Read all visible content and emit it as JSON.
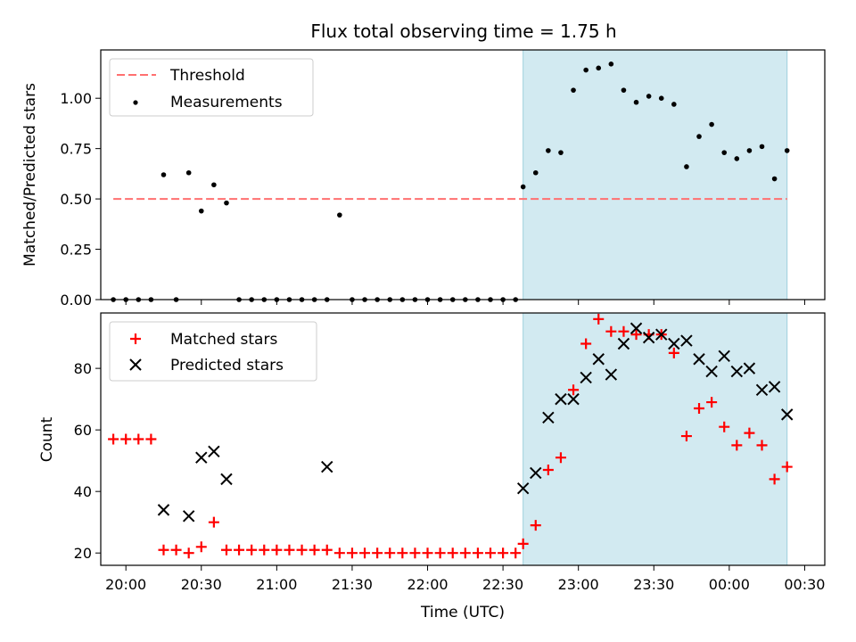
{
  "figure": {
    "title": "Flux total observing time = 1.75 h",
    "highlight_color": "#add8e6",
    "x_ticks": [
      "20:00",
      "20:30",
      "21:00",
      "21:30",
      "22:00",
      "22:30",
      "23:00",
      "23:30",
      "00:00",
      "00:30"
    ],
    "x_tick_minutes": [
      0,
      30,
      60,
      90,
      120,
      150,
      180,
      210,
      240,
      270
    ],
    "xlabel": "Time (UTC)",
    "xlim": [
      -10,
      278
    ]
  },
  "chart_data": [
    {
      "type": "scatter",
      "title": "Flux total observing time = 1.75 h",
      "ylabel": "Matched/Predicted stars",
      "xlabel": "",
      "ylim": [
        0,
        1.24
      ],
      "y_ticks": [
        0.0,
        0.25,
        0.5,
        0.75,
        1.0
      ],
      "y_tick_labels": [
        "0.00",
        "0.25",
        "0.50",
        "0.75",
        "1.00"
      ],
      "legend": {
        "position": "top-left",
        "entries": [
          "Threshold",
          "Measurements"
        ]
      },
      "highlight": {
        "x_from": 158,
        "x_to": 263,
        "color": "#add8e6"
      },
      "threshold": {
        "name": "Threshold",
        "y": 0.5,
        "x_from": -5,
        "x_to": 263,
        "color": "#ff7070"
      },
      "series": [
        {
          "name": "Measurements",
          "color": "#000000",
          "marker": "dot",
          "x": [
            -5,
            0,
            5,
            10,
            15,
            20,
            25,
            30,
            35,
            40,
            45,
            50,
            55,
            60,
            65,
            70,
            75,
            80,
            85,
            90,
            95,
            100,
            105,
            110,
            115,
            120,
            125,
            130,
            135,
            140,
            145,
            150,
            155,
            158,
            163,
            168,
            173,
            178,
            183,
            188,
            193,
            198,
            203,
            208,
            213,
            218,
            223,
            228,
            233,
            238,
            243,
            248,
            253,
            258,
            263
          ],
          "y": [
            0,
            0,
            0,
            0,
            0.62,
            0,
            0.63,
            0.44,
            0.57,
            0.48,
            0,
            0,
            0,
            0,
            0,
            0,
            0,
            0,
            0.42,
            0,
            0,
            0,
            0,
            0,
            0,
            0,
            0,
            0,
            0,
            0,
            0,
            0,
            0,
            0.56,
            0.63,
            0.74,
            0.73,
            1.04,
            1.14,
            1.15,
            1.17,
            1.04,
            0.98,
            1.01,
            1.0,
            0.97,
            0.66,
            0.81,
            0.87,
            0.73,
            0.7,
            0.74,
            0.76,
            0.6,
            0.74
          ]
        }
      ]
    },
    {
      "type": "scatter",
      "ylabel": "Count",
      "xlabel": "Time (UTC)",
      "ylim": [
        16,
        98
      ],
      "y_ticks": [
        20,
        40,
        60,
        80
      ],
      "y_tick_labels": [
        "20",
        "40",
        "60",
        "80"
      ],
      "legend": {
        "position": "top-left",
        "entries": [
          "Matched stars",
          "Predicted stars"
        ]
      },
      "highlight": {
        "x_from": 158,
        "x_to": 263,
        "color": "#add8e6"
      },
      "series": [
        {
          "name": "Matched stars",
          "color": "#ff0000",
          "marker": "plus",
          "x": [
            -5,
            0,
            5,
            10,
            15,
            20,
            25,
            30,
            35,
            40,
            45,
            50,
            55,
            60,
            65,
            70,
            75,
            80,
            85,
            90,
            95,
            100,
            105,
            110,
            115,
            120,
            125,
            130,
            135,
            140,
            145,
            150,
            155,
            158,
            163,
            168,
            173,
            178,
            183,
            188,
            193,
            198,
            203,
            208,
            213,
            218,
            223,
            228,
            233,
            238,
            243,
            248,
            253,
            258,
            263
          ],
          "y": [
            57,
            57,
            57,
            57,
            21,
            21,
            20,
            22,
            30,
            21,
            21,
            21,
            21,
            21,
            21,
            21,
            21,
            21,
            20,
            20,
            20,
            20,
            20,
            20,
            20,
            20,
            20,
            20,
            20,
            20,
            20,
            20,
            20,
            23,
            29,
            47,
            51,
            73,
            88,
            96,
            92,
            92,
            91,
            91,
            91,
            85,
            58,
            67,
            69,
            61,
            55,
            59,
            55,
            44,
            48
          ]
        },
        {
          "name": "Predicted stars",
          "color": "#000000",
          "marker": "x",
          "x": [
            15,
            25,
            30,
            35,
            40,
            80,
            158,
            163,
            168,
            173,
            178,
            183,
            188,
            193,
            198,
            203,
            208,
            213,
            218,
            223,
            228,
            233,
            238,
            243,
            248,
            253,
            258,
            263
          ],
          "y": [
            34,
            32,
            51,
            53,
            44,
            48,
            41,
            46,
            64,
            70,
            70,
            77,
            83,
            78,
            88,
            93,
            90,
            91,
            88,
            89,
            83,
            79,
            84,
            79,
            80,
            73,
            74,
            65
          ]
        }
      ]
    }
  ]
}
